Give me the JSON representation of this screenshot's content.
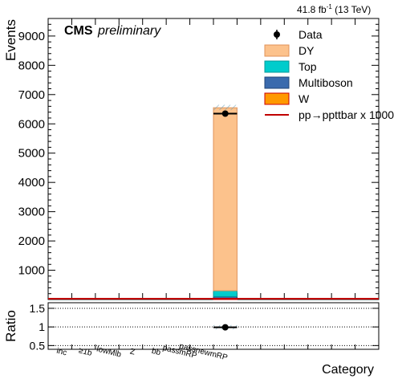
{
  "header": {
    "lumi_label": "41.8 fb",
    "lumi_exp": "-1",
    "energy_label": "(13 TeV)",
    "experiment": "CMS",
    "status": "preliminary"
  },
  "axes": {
    "ylabel": "Events",
    "ratio_ylabel": "Ratio",
    "xlabel": "Category"
  },
  "colors": {
    "DY": "#fcc28c",
    "DY_edge": "#e0935a",
    "Top": "#00cccc",
    "Multiboson": "#3a6aad",
    "W": "#ff9900",
    "W_edge": "#cc0000",
    "Signal": "#c00000"
  },
  "chart_data": [
    {
      "type": "bar",
      "stacked": true,
      "categories": [
        "inc",
        "≥1b",
        "lowMlb",
        "Z",
        "bb",
        "passmRP",
        "passnewmRP",
        "",
        "",
        "",
        "",
        "",
        "",
        ""
      ],
      "ylim": [
        0,
        9600
      ],
      "yticks": [
        1000,
        2000,
        3000,
        4000,
        5000,
        6000,
        7000,
        8000,
        9000
      ],
      "series": [
        {
          "name": "W",
          "values": [
            0,
            0,
            0,
            0,
            0,
            0,
            0,
            40,
            0,
            0,
            0,
            0,
            0,
            0
          ]
        },
        {
          "name": "Multiboson",
          "values": [
            0,
            0,
            0,
            0,
            0,
            0,
            0,
            60,
            0,
            0,
            0,
            0,
            0,
            0
          ]
        },
        {
          "name": "Top",
          "values": [
            0,
            0,
            0,
            0,
            0,
            0,
            0,
            200,
            0,
            0,
            0,
            0,
            0,
            0
          ]
        },
        {
          "name": "DY",
          "values": [
            0,
            0,
            0,
            0,
            0,
            0,
            0,
            6250,
            0,
            0,
            0,
            0,
            0,
            0
          ]
        }
      ],
      "uncertainty": {
        "bin": 7,
        "low": 6470,
        "high": 6650
      },
      "data_points": [
        {
          "bin": 7,
          "value": 6350,
          "xerr": 0.5
        }
      ],
      "signal": {
        "name": "pp→ppttbar x 1000",
        "value": 0
      },
      "legend": [
        "Data",
        "DY",
        "Top",
        "Multiboson",
        "W",
        "pp→ppttbar x 1000"
      ],
      "legend_position": "top-right"
    },
    {
      "type": "scatter",
      "ylim": [
        0.4,
        1.65
      ],
      "yticks": [
        0.5,
        1,
        1.5
      ],
      "yticklabels": [
        "0.5",
        "1",
        "1.5"
      ],
      "gridlines": [
        0.5,
        1.0,
        1.5
      ],
      "uncertainty": {
        "bin": 7,
        "low": 0.93,
        "high": 1.05
      },
      "data_points": [
        {
          "bin": 7,
          "value": 0.99,
          "yerr": 0.015,
          "xerr": 0.5
        }
      ]
    }
  ]
}
